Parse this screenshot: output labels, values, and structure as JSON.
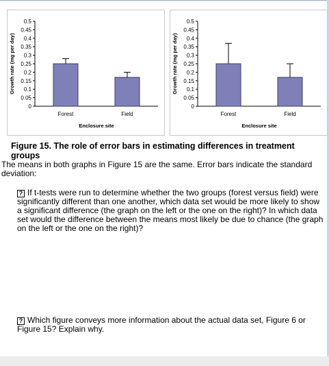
{
  "chart_data": [
    {
      "type": "bar",
      "categories": [
        "Forest",
        "Field"
      ],
      "values": [
        0.25,
        0.17
      ],
      "error_bars": [
        0.03,
        0.03
      ],
      "xlabel": "Enclosure site",
      "ylabel": "Growth rate (mg per day)",
      "ylim": [
        0,
        0.5
      ],
      "yticks": [
        "0",
        "0.05",
        "0.1",
        "0.15",
        "0.2",
        "0.25",
        "0.3",
        "0.35",
        "0.4",
        "0.45",
        "0.5"
      ],
      "colors": {
        "bar": "#8080b8",
        "bar_edge": "#3b3b6e"
      },
      "grid": false
    },
    {
      "type": "bar",
      "categories": [
        "Forest",
        "Field"
      ],
      "values": [
        0.25,
        0.17
      ],
      "error_bars": [
        0.12,
        0.08
      ],
      "xlabel": "Enclosure site",
      "ylabel": "Growth rate (mg per day)",
      "ylim": [
        0,
        0.5
      ],
      "yticks": [
        "0",
        "0.05",
        "0.1",
        "0.15",
        "0.2",
        "0.25",
        "0.3",
        "0.35",
        "0.4",
        "0.45",
        "0.5"
      ],
      "colors": {
        "bar": "#8080b8",
        "bar_edge": "#3b3b6e"
      },
      "grid": false
    }
  ],
  "figure_title": "Figure 15. The role of error bars in estimating differences in treatment groups",
  "intro": "The means in both graphs in Figure 15 are the same.  Error bars indicate the standard deviation:",
  "questions": [
    {
      "icon": "?",
      "text": "If t-tests were run to determine whether the two groups (forest versus field) were significantly different than one another, which data set would be more likely to show a significant difference (the graph on the left or the one on the right)?  In which data set would the difference between the means most likely be due to chance (the graph on the left or the one on the right)?"
    },
    {
      "icon": "?",
      "text": "Which figure conveys more information about the actual data set, Figure 6 or Figure 15?   Explain why."
    }
  ]
}
